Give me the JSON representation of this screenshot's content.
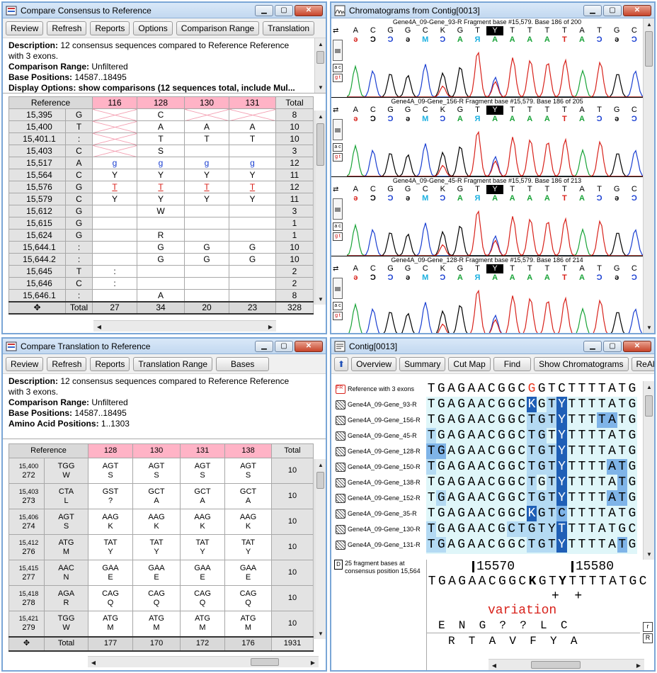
{
  "w1": {
    "title": "Compare Consensus to Reference",
    "buttons": [
      "Review",
      "Refresh",
      "Reports",
      "Options",
      "Comparison Range",
      "Translation"
    ],
    "desc": {
      "l1_b": "Description:",
      "l1": " 12 consensus sequences compared to Reference Reference",
      "l2": "with 3 exons.",
      "l3_b": "Comparison Range:",
      "l3": " Unfiltered",
      "l4_b": "Base Positions:",
      "l4": " 14587..18495",
      "l5": "Display Options: show comparisons (12 sequences total, include Mul..."
    },
    "header": [
      "Reference",
      "116",
      "128",
      "130",
      "131",
      "Total"
    ],
    "rows": [
      {
        "pos": "15,395",
        "ref": "G",
        "c": [
          "x",
          "C",
          "x",
          "x"
        ],
        "t": "8"
      },
      {
        "pos": "15,400",
        "ref": "T",
        "c": [
          "x",
          "A",
          "A",
          "A"
        ],
        "t": "10"
      },
      {
        "pos": "15,401.1",
        "ref": ":",
        "c": [
          "x",
          "T",
          "T",
          "T"
        ],
        "t": "10"
      },
      {
        "pos": "15,403",
        "ref": "C",
        "c": [
          "x",
          "S",
          "",
          ""
        ],
        "t": "3"
      },
      {
        "pos": "15,517",
        "ref": "A",
        "c": [
          "g",
          "g",
          "g",
          "g"
        ],
        "t": "12"
      },
      {
        "pos": "15,564",
        "ref": "C",
        "c": [
          "Y",
          "Y",
          "Y",
          "Y"
        ],
        "t": "11"
      },
      {
        "pos": "15,576",
        "ref": "G",
        "c": [
          "T",
          "T",
          "T",
          "T"
        ],
        "t": "12"
      },
      {
        "pos": "15,579",
        "ref": "C",
        "c": [
          "Y",
          "Y",
          "Y",
          "Y"
        ],
        "t": "11"
      },
      {
        "pos": "15,612",
        "ref": "G",
        "c": [
          "",
          "W",
          "",
          ""
        ],
        "t": "3"
      },
      {
        "pos": "15,615",
        "ref": "G",
        "c": [
          "",
          "",
          "",
          ""
        ],
        "t": "1"
      },
      {
        "pos": "15,624",
        "ref": "G",
        "c": [
          "",
          "R",
          "",
          ""
        ],
        "t": "1"
      },
      {
        "pos": "15,644.1",
        "ref": ":",
        "c": [
          "",
          "G",
          "G",
          "G"
        ],
        "t": "10"
      },
      {
        "pos": "15,644.2",
        "ref": ":",
        "c": [
          "",
          "G",
          "G",
          "G"
        ],
        "t": "10"
      },
      {
        "pos": "15,645",
        "ref": "T",
        "c": [
          ":",
          "",
          "",
          ""
        ],
        "t": "2"
      },
      {
        "pos": "15,646",
        "ref": "C",
        "c": [
          ":",
          "",
          "",
          ""
        ],
        "t": "2"
      },
      {
        "pos": "15,646.1",
        "ref": ":",
        "c": [
          "",
          "A",
          "",
          ""
        ],
        "t": "8"
      }
    ],
    "footer": [
      "✥",
      "Total",
      "27",
      "34",
      "20",
      "23",
      "328"
    ]
  },
  "w2": {
    "title": "Compare Translation to Reference",
    "buttons": [
      "Review",
      "Refresh",
      "Reports",
      "Translation Range",
      "Bases"
    ],
    "desc": {
      "l1_b": "Description:",
      "l1": " 12 consensus sequences compared to Reference Reference",
      "l2": "with 3 exons.",
      "l3_b": "Comparison Range:",
      "l3": " Unfiltered",
      "l4_b": "Base Positions:",
      "l4": " 14587..18495",
      "l5_b": "Amino Acid Positions:",
      "l5": " 1..1303"
    },
    "header": [
      "Reference",
      "128",
      "130",
      "131",
      "138",
      "Total"
    ],
    "rows": [
      {
        "pos": "15,400",
        "aa": "272",
        "r1": "TGG",
        "r2": "W",
        "c": [
          [
            "AGT",
            "S"
          ],
          [
            "AGT",
            "S"
          ],
          [
            "AGT",
            "S"
          ],
          [
            "AGT",
            "S"
          ]
        ],
        "t": "10"
      },
      {
        "pos": "15,403",
        "aa": "273",
        "r1": "CTA",
        "r2": "L",
        "c": [
          [
            "GST",
            "?"
          ],
          [
            "GCT",
            "A"
          ],
          [
            "GCT",
            "A"
          ],
          [
            "GCT",
            "A"
          ]
        ],
        "t": "10"
      },
      {
        "pos": "15,406",
        "aa": "274",
        "r1": "AGT",
        "r2": "S",
        "c": [
          [
            "AAG",
            "K"
          ],
          [
            "AAG",
            "K"
          ],
          [
            "AAG",
            "K"
          ],
          [
            "AAG",
            "K"
          ]
        ],
        "t": "10"
      },
      {
        "pos": "15,412",
        "aa": "276",
        "r1": "ATG",
        "r2": "M",
        "c": [
          [
            "TAT",
            "Y"
          ],
          [
            "TAT",
            "Y"
          ],
          [
            "TAT",
            "Y"
          ],
          [
            "TAT",
            "Y"
          ]
        ],
        "t": "10"
      },
      {
        "pos": "15,415",
        "aa": "277",
        "r1": "AAC",
        "r2": "N",
        "c": [
          [
            "GAA",
            "E"
          ],
          [
            "GAA",
            "E"
          ],
          [
            "GAA",
            "E"
          ],
          [
            "GAA",
            "E"
          ]
        ],
        "t": "10"
      },
      {
        "pos": "15,418",
        "aa": "278",
        "r1": "AGA",
        "r2": "R",
        "c": [
          [
            "CAG",
            "Q"
          ],
          [
            "CAG",
            "Q"
          ],
          [
            "CAG",
            "Q"
          ],
          [
            "CAG",
            "Q"
          ]
        ],
        "t": "10"
      },
      {
        "pos": "15,421",
        "aa": "279",
        "r1": "TGG",
        "r2": "W",
        "c": [
          [
            "ATG",
            "M"
          ],
          [
            "ATG",
            "M"
          ],
          [
            "ATG",
            "M"
          ],
          [
            "ATG",
            "M"
          ]
        ],
        "t": "10"
      }
    ],
    "footer": [
      "✥",
      "Total",
      "177",
      "170",
      "172",
      "176",
      "1931"
    ]
  },
  "w3": {
    "title": "Chromatograms from Contig[0013]",
    "bases": [
      "A",
      "C",
      "G",
      "G",
      "C",
      "K",
      "G",
      "T",
      "Y",
      "T",
      "T",
      "T",
      "T",
      "A",
      "T",
      "G",
      "C"
    ],
    "tracks": [
      {
        "cap": "Gene4A_09-Gene_93-R Fragment base #15,579. Base 186 of 200"
      },
      {
        "cap": "Gene4A_09-Gene_156-R Fragment base #15,579. Base 186 of 205"
      },
      {
        "cap": "Gene4A_09-Gene_45-R Fragment base #15,579. Base 186 of 213"
      },
      {
        "cap": "Gene4A_09-Gene_128-R Fragment base #15,579. Base 186 of 214"
      }
    ]
  },
  "w4": {
    "title": "Contig[0013]",
    "buttons": [
      "Overview",
      "Summary",
      "Cut Map",
      "Find",
      "Show Chromatograms",
      "ReAligner"
    ],
    "names": [
      "Reference with 3 exons",
      "Gene4A_09-Gene_93-R",
      "Gene4A_09-Gene_156-R",
      "Gene4A_09-Gene_45-R",
      "Gene4A_09-Gene_128-R",
      "Gene4A_09-Gene_150-R",
      "Gene4A_09-Gene_138-R",
      "Gene4A_09-Gene_152-R",
      "Gene4A_09-Gene_35-R",
      "Gene4A_09-Gene_130-R",
      "Gene4A_09-Gene_131-R"
    ],
    "info": "25 fragment bases at consensus position 15,564",
    "ruler1": "15570",
    "ruler2": "15580",
    "consensus": "TGAGAACGGCKGTYTTTTATGC",
    "marks": "+  +",
    "variation": "variation",
    "aa1": "E  N  G  ?  ?  L  C",
    "aa2": "R  T  A  V  F  Y  A"
  }
}
